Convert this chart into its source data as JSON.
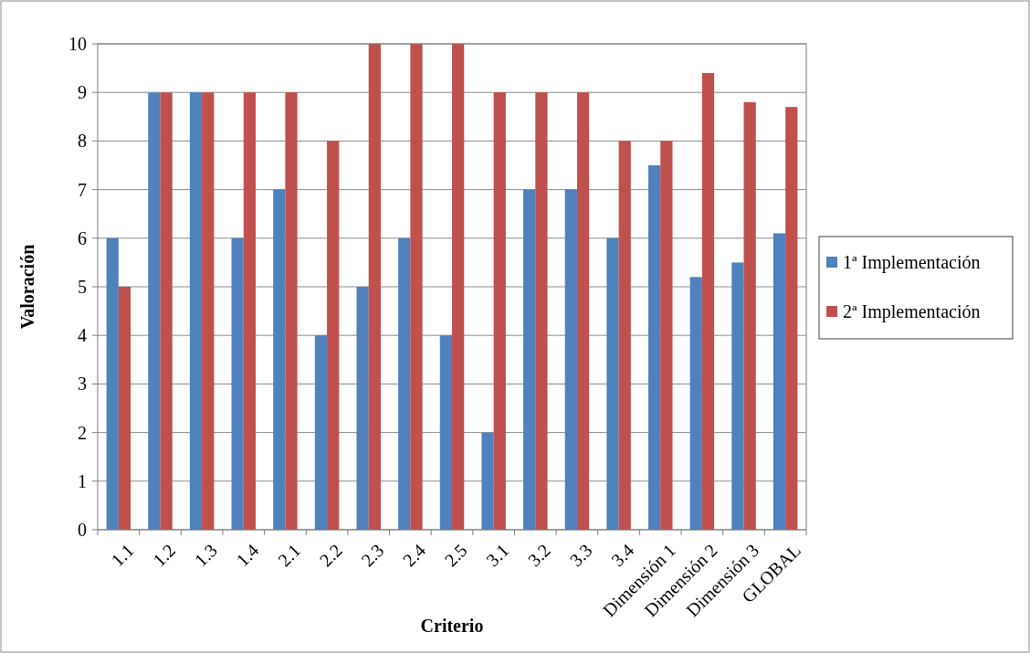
{
  "chart_data": {
    "type": "bar",
    "xlabel": "Criterio",
    "ylabel": "Valoración",
    "categories": [
      "1.1",
      "1.2",
      "1.3",
      "1.4",
      "2.1",
      "2.2",
      "2.3",
      "2.4",
      "2.5",
      "3.1",
      "3.2",
      "3.3",
      "3.4",
      "Dimensión 1",
      "Dimensión 2",
      "Dimensión 3",
      "GLOBAL"
    ],
    "series": [
      {
        "name": "1ª Implementación",
        "color": "#4f81bd",
        "values": [
          6,
          9,
          9,
          6,
          7,
          4,
          5,
          6,
          4,
          2,
          7,
          7,
          6,
          7.5,
          5.2,
          5.5,
          6.1
        ]
      },
      {
        "name": "2ª Implementación",
        "color": "#c0504d",
        "values": [
          5,
          9,
          9,
          9,
          9,
          8,
          10,
          10,
          10,
          9,
          9,
          9,
          8,
          8,
          9.4,
          8.8,
          8.7
        ]
      }
    ],
    "ylim": [
      0,
      10
    ],
    "yticks": [
      0,
      1,
      2,
      3,
      4,
      5,
      6,
      7,
      8,
      9,
      10
    ],
    "grid": "y",
    "legend": "right"
  }
}
